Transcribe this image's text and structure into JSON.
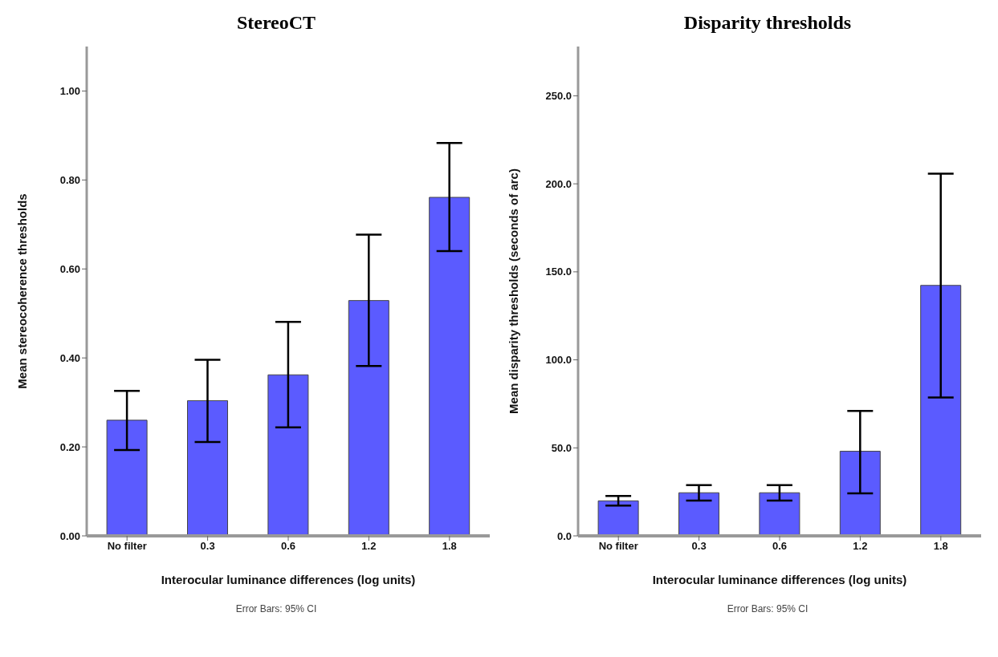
{
  "chart_data": [
    {
      "type": "bar",
      "title": "StereoCT",
      "xlabel": "Interocular luminance differences (log units)",
      "ylabel": "Mean stereocoherence thresholds",
      "categories": [
        "No filter",
        "0.3",
        "0.6",
        "1.2",
        "1.8"
      ],
      "values": [
        0.26,
        0.304,
        0.362,
        0.529,
        0.761
      ],
      "errors": [
        [
          0.193,
          0.326
        ],
        [
          0.211,
          0.396
        ],
        [
          0.244,
          0.481
        ],
        [
          0.382,
          0.677
        ],
        [
          0.64,
          0.883
        ]
      ],
      "color": "#5b5bff",
      "ylim": [
        0,
        1.1
      ],
      "yticks": [
        {
          "value": 0,
          "label": "0.00"
        },
        {
          "value": 0.2,
          "label": "0.20"
        },
        {
          "value": 0.4,
          "label": "0.40"
        },
        {
          "value": 0.6,
          "label": "0.60"
        },
        {
          "value": 0.8,
          "label": "0.80"
        },
        {
          "value": 1,
          "label": "1.00"
        }
      ],
      "annotations": [
        "Error Bars: 95% CI"
      ]
    },
    {
      "type": "bar",
      "title": "Disparity thresholds",
      "xlabel": "Interocular luminance differences (log units)",
      "ylabel": "Mean disparity thresholds (seconds of arc)",
      "categories": [
        "No filter",
        "0.3",
        "0.6",
        "1.2",
        "1.8"
      ],
      "values": [
        19.9,
        24.5,
        24.5,
        48.1,
        142.3
      ],
      "errors": [
        [
          17.2,
          22.7
        ],
        [
          20,
          28.8
        ],
        [
          20,
          28.8
        ],
        [
          24.2,
          71
        ],
        [
          78.6,
          205.8
        ]
      ],
      "color": "#5b5bff",
      "ylim": [
        0,
        278
      ],
      "yticks": [
        {
          "value": 0,
          "label": "0.0"
        },
        {
          "value": 50,
          "label": "50.0"
        },
        {
          "value": 100,
          "label": "100.0"
        },
        {
          "value": 150,
          "label": "150.0"
        },
        {
          "value": 200,
          "label": "200.0"
        },
        {
          "value": 250,
          "label": "250.0"
        }
      ],
      "annotations": [
        "Error Bars: 95% CI"
      ]
    }
  ]
}
